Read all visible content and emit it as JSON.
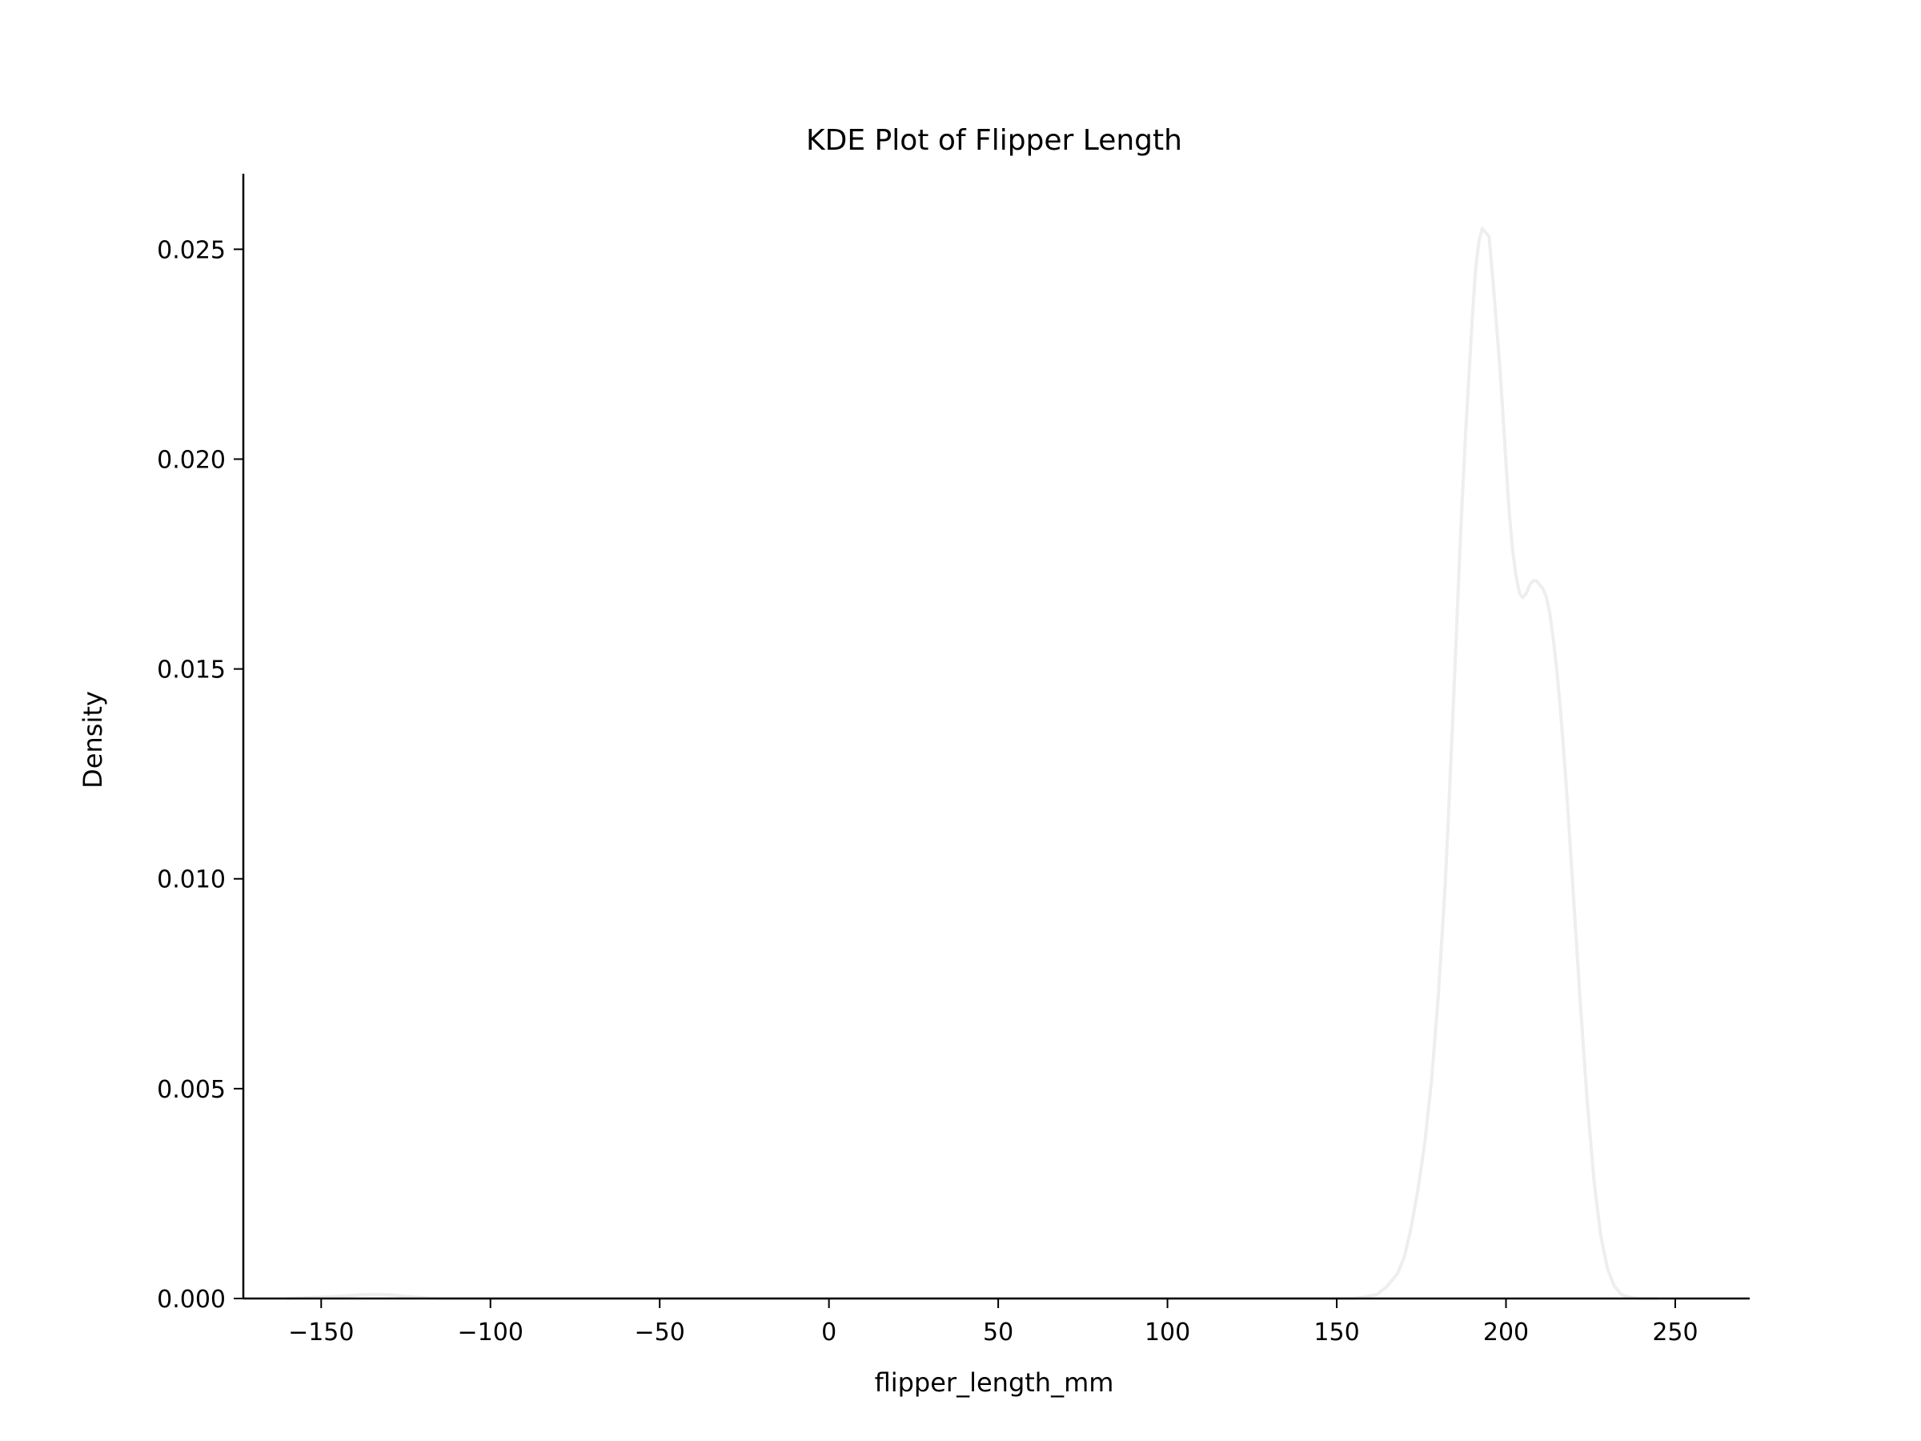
{
  "chart_data": {
    "type": "line",
    "title": "KDE Plot of Flipper Length",
    "xlabel": "flipper_length_mm",
    "ylabel": "Density",
    "xlim": [
      -173,
      272
    ],
    "ylim": [
      0,
      0.0268
    ],
    "x_ticks": [
      -150,
      -100,
      -50,
      0,
      50,
      100,
      150,
      200,
      250
    ],
    "x_tick_labels": [
      "−150",
      "−100",
      "−50",
      "0",
      "50",
      "100",
      "150",
      "200",
      "250"
    ],
    "y_ticks": [
      0,
      0.005,
      0.01,
      0.015,
      0.02,
      0.025
    ],
    "y_tick_labels": [
      "0.000",
      "0.005",
      "0.010",
      "0.015",
      "0.020",
      "0.025"
    ],
    "grid": false,
    "line_color": "#eeeeee",
    "series": [
      {
        "x": [
          -160,
          -150,
          -143,
          -138,
          -134,
          -130,
          -126,
          -122,
          -118,
          -115,
          155,
          158,
          162,
          165,
          168,
          170,
          172,
          174,
          176,
          178,
          180,
          182,
          183,
          184,
          185,
          186,
          187,
          188,
          189,
          190,
          191,
          192,
          193,
          194,
          195,
          196,
          197,
          198,
          199,
          200,
          201,
          202,
          203,
          204,
          205,
          206,
          207,
          208,
          209,
          210,
          211,
          212,
          213,
          214,
          215,
          216,
          217,
          218,
          220,
          222,
          224,
          226,
          228,
          230,
          232,
          234,
          236,
          238,
          240,
          242,
          245
        ],
        "y": [
          0,
          3e-05,
          6e-05,
          9e-05,
          0.0001,
          9e-05,
          6e-05,
          3e-05,
          1e-05,
          0,
          0,
          3e-05,
          0.0001,
          0.0003,
          0.0006,
          0.001,
          0.0017,
          0.0026,
          0.0037,
          0.0052,
          0.0072,
          0.0098,
          0.0115,
          0.0133,
          0.0152,
          0.0171,
          0.0189,
          0.0205,
          0.0219,
          0.0233,
          0.0245,
          0.0252,
          0.0255,
          0.0254,
          0.0253,
          0.0244,
          0.0234,
          0.0224,
          0.0212,
          0.0199,
          0.0187,
          0.0178,
          0.0172,
          0.0168,
          0.0167,
          0.0168,
          0.017,
          0.0171,
          0.0171,
          0.017,
          0.0169,
          0.0167,
          0.0163,
          0.0157,
          0.015,
          0.0141,
          0.0131,
          0.012,
          0.0095,
          0.007,
          0.0047,
          0.0028,
          0.0015,
          0.0007,
          0.0003,
          0.0001,
          4e-05,
          1e-05,
          0,
          0,
          0
        ]
      }
    ]
  }
}
